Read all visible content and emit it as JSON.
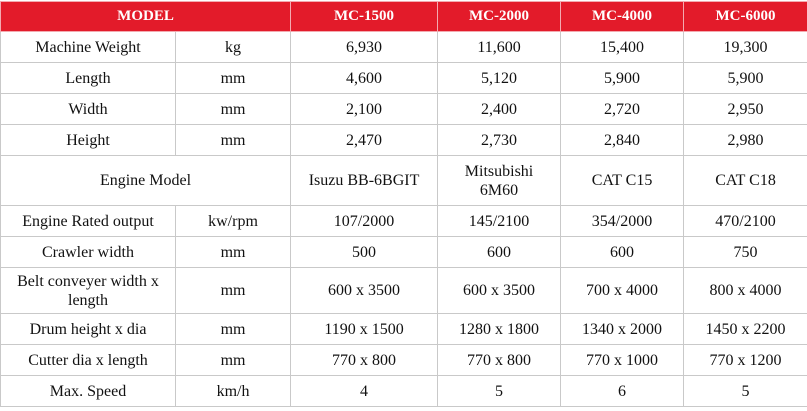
{
  "header": {
    "title": "MODEL",
    "models": [
      "MC-1500",
      "MC-2000",
      "MC-4000",
      "MC-6000"
    ]
  },
  "rows": [
    {
      "label": "Machine Weight",
      "unit": "kg",
      "values": [
        "6,930",
        "11,600",
        "15,400",
        "19,300"
      ]
    },
    {
      "label": "Length",
      "unit": "mm",
      "values": [
        "4,600",
        "5,120",
        "5,900",
        "5,900"
      ]
    },
    {
      "label": "Width",
      "unit": "mm",
      "values": [
        "2,100",
        "2,400",
        "2,720",
        "2,950"
      ]
    },
    {
      "label": "Height",
      "unit": "mm",
      "values": [
        "2,470",
        "2,730",
        "2,840",
        "2,980"
      ]
    },
    {
      "label": "Engine Model",
      "values": [
        "Isuzu BB-6BGIT",
        "Mitsubishi\n6M60",
        "CAT C15",
        "CAT C18"
      ]
    },
    {
      "label": "Engine Rated output",
      "unit": "kw/rpm",
      "values": [
        "107/2000",
        "145/2100",
        "354/2000",
        "470/2100"
      ]
    },
    {
      "label": "Crawler width",
      "unit": "mm",
      "values": [
        "500",
        "600",
        "600",
        "750"
      ]
    },
    {
      "label": "Belt conveyer width x length",
      "unit": "mm",
      "values": [
        "600 x 3500",
        "600 x 3500",
        "700 x 4000",
        "800 x 4000"
      ]
    },
    {
      "label": "Drum height x dia",
      "unit": "mm",
      "values": [
        "1190 x 1500",
        "1280 x 1800",
        "1340 x 2000",
        "1450 x 2200"
      ]
    },
    {
      "label": "Cutter dia x length",
      "unit": "mm",
      "values": [
        "770 x 800",
        "770 x 800",
        "770 x 1000",
        "770 x 1200"
      ]
    },
    {
      "label": "Max. Speed",
      "unit": "km/h",
      "values": [
        "4",
        "5",
        "6",
        "5"
      ]
    }
  ]
}
